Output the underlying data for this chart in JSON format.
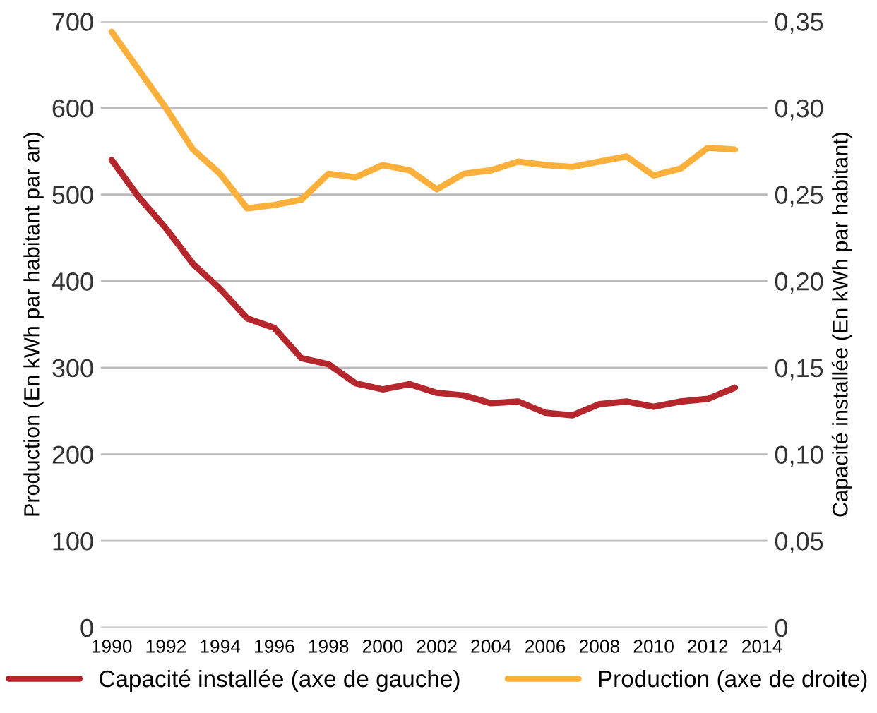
{
  "chart_data": {
    "type": "line",
    "x": [
      1990,
      1991,
      1992,
      1993,
      1994,
      1995,
      1996,
      1997,
      1998,
      1999,
      2000,
      2001,
      2002,
      2003,
      2004,
      2005,
      2006,
      2007,
      2008,
      2009,
      2010,
      2011,
      2012,
      2013
    ],
    "series": [
      {
        "name": "Capacité installée (axe de gauche)",
        "color": "#b5272d",
        "values": [
          540,
          497,
          461,
          420,
          391,
          357,
          346,
          311,
          304,
          282,
          275,
          281,
          271,
          268,
          259,
          261,
          248,
          245,
          258,
          261,
          255,
          261,
          264,
          277
        ]
      },
      {
        "name": "Production (axe de droite)",
        "color": "#fbb03b",
        "axis": "y2",
        "values": [
          0.344,
          0.322,
          0.3,
          0.276,
          0.262,
          0.242,
          0.244,
          0.247,
          0.262,
          0.26,
          0.267,
          0.264,
          0.253,
          0.262,
          0.264,
          0.269,
          0.267,
          0.266,
          0.269,
          0.272,
          0.261,
          0.265,
          0.277,
          0.276
        ]
      }
    ],
    "ylabel": "Production (En kWh par habitant par an)",
    "y2label": "Capacité installée (En kWh par habitant)",
    "xlim": [
      1989.6,
      2014.2
    ],
    "xticks": [
      1990,
      1992,
      1994,
      1996,
      1998,
      2000,
      2002,
      2004,
      2006,
      2008,
      2010,
      2012,
      2014
    ],
    "ylim": [
      0,
      700
    ],
    "yticks": [
      0,
      100,
      200,
      300,
      400,
      500,
      600,
      700
    ],
    "y2lim": [
      0,
      0.35
    ],
    "y2ticks": [
      {
        "value": 0,
        "label": "0"
      },
      {
        "value": 0.05,
        "label": "0,05"
      },
      {
        "value": 0.1,
        "label": "0,10"
      },
      {
        "value": 0.15,
        "label": "0,15"
      },
      {
        "value": 0.2,
        "label": "0,20"
      },
      {
        "value": 0.25,
        "label": "0,25"
      },
      {
        "value": 0.3,
        "label": "0,30"
      },
      {
        "value": 0.35,
        "label": "0,35"
      }
    ],
    "grid": "y",
    "legend": "bottom",
    "marker": "none",
    "line_style": "solid"
  }
}
